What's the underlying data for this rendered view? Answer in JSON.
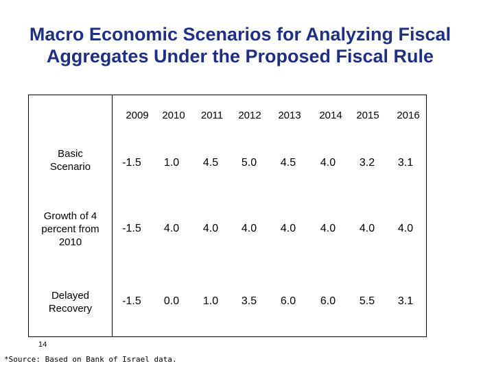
{
  "title": {
    "line1": "Macro Economic Scenarios for Analyzing Fiscal",
    "line2": "Aggregates Under the Proposed Fiscal Rule"
  },
  "table": {
    "years": [
      "2009",
      "2010",
      "2011",
      "2012",
      "2013",
      "2014",
      "2015",
      "2016"
    ],
    "rows": [
      {
        "label_lines": [
          "Basic",
          "Scenario"
        ],
        "values": [
          "-1.5",
          "1.0",
          "4.5",
          "5.0",
          "4.5",
          "4.0",
          "3.2",
          "3.1"
        ]
      },
      {
        "label_lines": [
          "Growth of 4",
          "percent from",
          "2010"
        ],
        "values": [
          "-1.5",
          "4.0",
          "4.0",
          "4.0",
          "4.0",
          "4.0",
          "4.0",
          "4.0"
        ]
      },
      {
        "label_lines": [
          "Delayed",
          "Recovery"
        ],
        "values": [
          "-1.5",
          "0.0",
          "1.0",
          "3.5",
          "6.0",
          "6.0",
          "5.5",
          "3.1"
        ]
      }
    ]
  },
  "footer": {
    "page_number": "14",
    "source": "*Source: Based on Bank of Israel data."
  }
}
